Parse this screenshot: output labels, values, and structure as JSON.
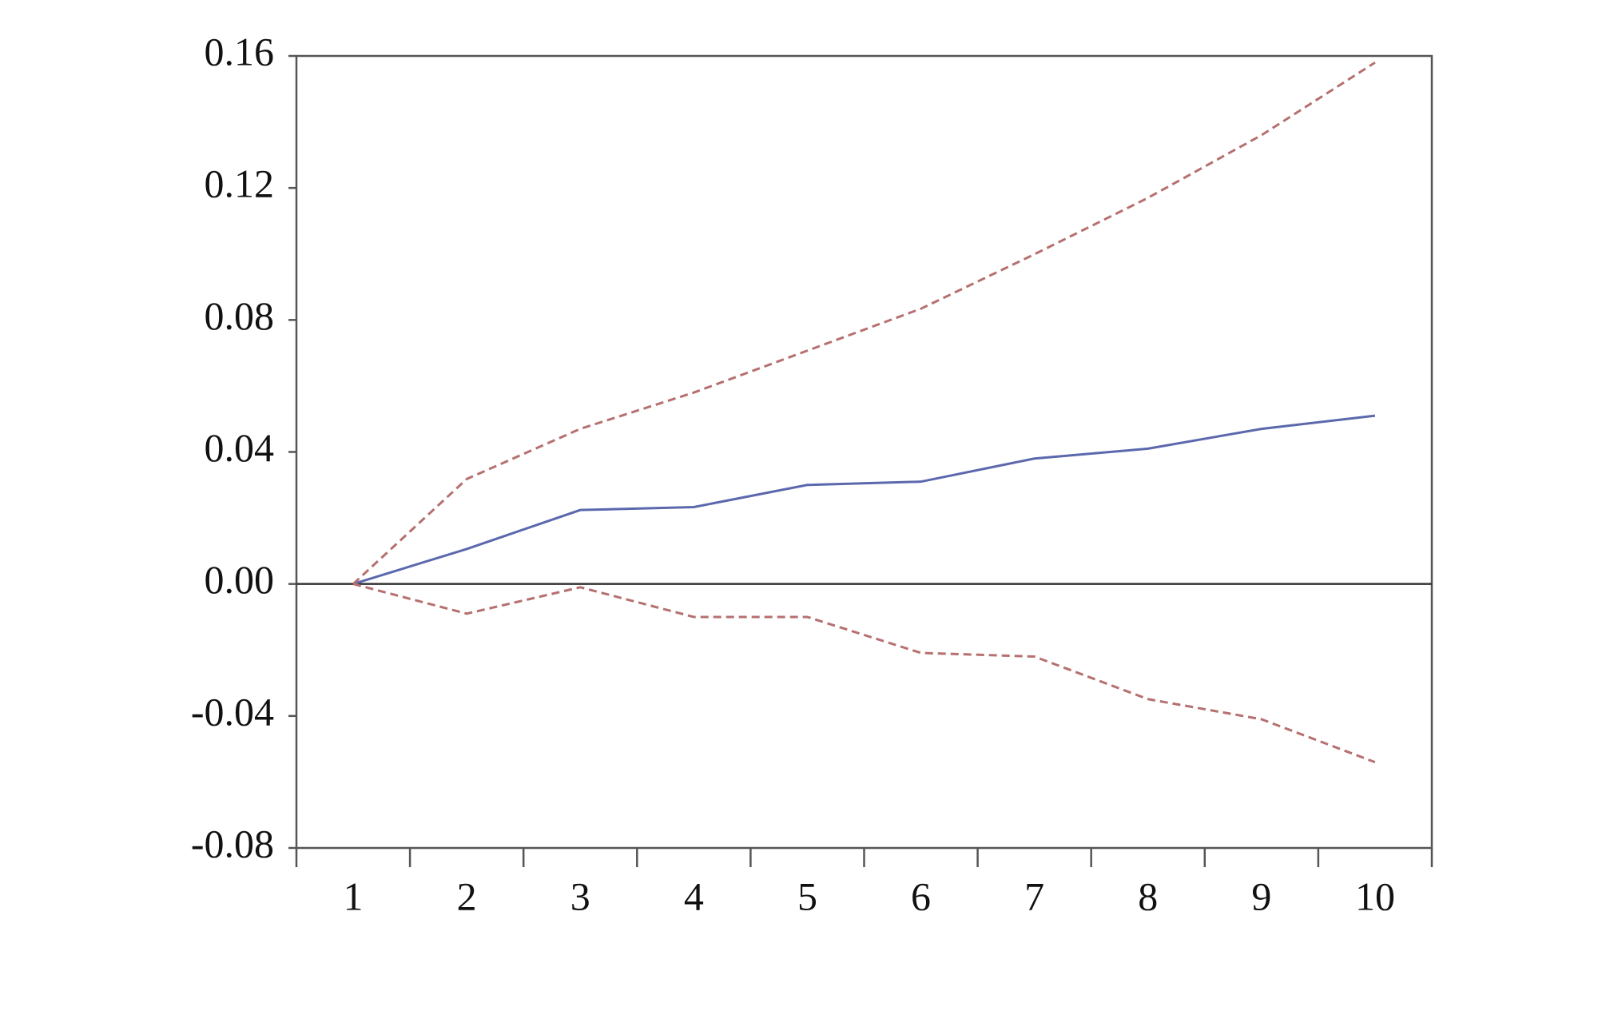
{
  "chart_data": {
    "type": "line",
    "categories": [
      "1",
      "2",
      "3",
      "4",
      "5",
      "6",
      "7",
      "8",
      "9",
      "10"
    ],
    "series": [
      {
        "color": "#5b68ad",
        "dashed": false,
        "values": [
          0,
          0.0106,
          0.0224,
          0.0233,
          0.03,
          0.031,
          0.038,
          0.041,
          0.047,
          0.051
        ]
      },
      {
        "color": "#b5706f",
        "dashed": true,
        "values": [
          0,
          0.0318,
          0.047,
          0.058,
          0.0707,
          0.0834,
          0.0999,
          0.117,
          0.136,
          0.158
        ]
      },
      {
        "color": "#b5706f",
        "dashed": true,
        "values": [
          0,
          -0.009,
          -0.001,
          -0.01,
          -0.01,
          -0.0209,
          -0.022,
          -0.0349,
          -0.041,
          -0.054
        ]
      }
    ],
    "ylim": [
      -0.08,
      0.16
    ],
    "yticks": [
      -0.08,
      -0.04,
      {
        "value": 0,
        "label": "0.00"
      },
      0.04,
      0.08,
      0.12,
      0.16
    ],
    "grid": false,
    "zero_line": true
  }
}
